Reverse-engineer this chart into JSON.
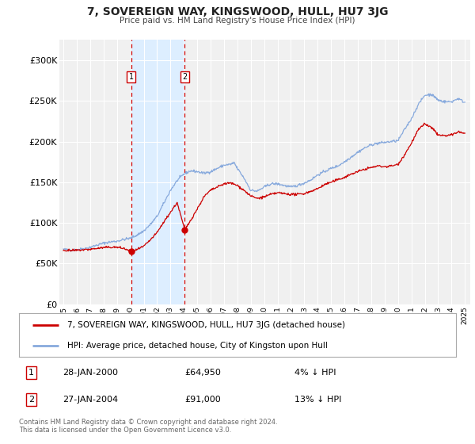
{
  "title": "7, SOVEREIGN WAY, KINGSWOOD, HULL, HU7 3JG",
  "subtitle": "Price paid vs. HM Land Registry's House Price Index (HPI)",
  "background_color": "#ffffff",
  "plot_bg_color": "#f0f0f0",
  "grid_color": "#ffffff",
  "ylim": [
    0,
    325000
  ],
  "yticks": [
    0,
    50000,
    100000,
    150000,
    200000,
    250000,
    300000
  ],
  "ytick_labels": [
    "£0",
    "£50K",
    "£100K",
    "£150K",
    "£200K",
    "£250K",
    "£300K"
  ],
  "xlim_start": 1994.7,
  "xlim_end": 2025.4,
  "xticks": [
    1995,
    1996,
    1997,
    1998,
    1999,
    2000,
    2001,
    2002,
    2003,
    2004,
    2005,
    2006,
    2007,
    2008,
    2009,
    2010,
    2011,
    2012,
    2013,
    2014,
    2015,
    2016,
    2017,
    2018,
    2019,
    2020,
    2021,
    2022,
    2023,
    2024,
    2025
  ],
  "price_paid_color": "#cc0000",
  "hpi_color": "#88aadd",
  "highlight_bg_color": "#ddeeff",
  "purchase1_x": 2000.07,
  "purchase1_y": 64950,
  "purchase2_x": 2004.07,
  "purchase2_y": 91000,
  "vline1_x": 2000.07,
  "vline2_x": 2004.07,
  "legend_label_price": "7, SOVEREIGN WAY, KINGSWOOD, HULL, HU7 3JG (detached house)",
  "legend_label_hpi": "HPI: Average price, detached house, City of Kingston upon Hull",
  "table_row1_num": "1",
  "table_row1_date": "28-JAN-2000",
  "table_row1_price": "£64,950",
  "table_row1_hpi": "4% ↓ HPI",
  "table_row2_num": "2",
  "table_row2_date": "27-JAN-2004",
  "table_row2_price": "£91,000",
  "table_row2_hpi": "13% ↓ HPI",
  "footnote": "Contains HM Land Registry data © Crown copyright and database right 2024.\nThis data is licensed under the Open Government Licence v3.0."
}
